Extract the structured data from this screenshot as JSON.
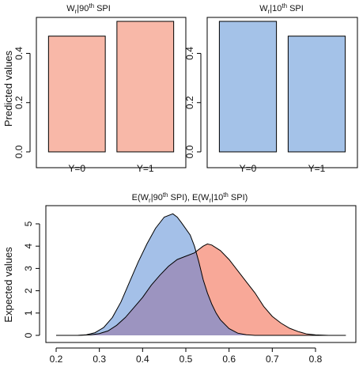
{
  "chart_data": [
    {
      "type": "bar",
      "title": {
        "main": "W",
        "sub": "r",
        "mid": "|90",
        "sup": "th",
        "tail": " SPI"
      },
      "ylabel": "Predicted values",
      "categories": [
        "Y=0",
        "Y=1"
      ],
      "values": [
        0.47,
        0.53
      ],
      "ylim": [
        0,
        0.53
      ],
      "yticks": [
        0.0,
        0.2,
        0.4
      ],
      "ytick_labels": [
        "0.0",
        "0.2",
        "0.4"
      ],
      "color": "#f8b8a8"
    },
    {
      "type": "bar",
      "title": {
        "main": "W",
        "sub": "r",
        "mid": "|10",
        "sup": "th",
        "tail": " SPI"
      },
      "categories": [
        "Y=0",
        "Y=1"
      ],
      "values": [
        0.53,
        0.47
      ],
      "ylim": [
        0,
        0.53
      ],
      "yticks": [
        0.0,
        0.2,
        0.4
      ],
      "ytick_labels": [
        "0.0",
        "0.2",
        "0.4"
      ],
      "color": "#a4c2e8"
    },
    {
      "type": "area",
      "title_parts": {
        "a": "E(W",
        "a_sub": "r",
        "a_mid": "|90",
        "a_sup": "th",
        "a_tail": " SPI), ",
        "b": "E(W",
        "b_sub": "r",
        "b_mid": "|10",
        "b_sup": "th",
        "b_tail": " SPI)"
      },
      "ylabel": "Expected values",
      "xlim": [
        0.2,
        0.87
      ],
      "ylim": [
        0,
        5.5
      ],
      "xticks": [
        0.2,
        0.3,
        0.4,
        0.5,
        0.6,
        0.7,
        0.8
      ],
      "xtick_labels": [
        "0.2",
        "0.3",
        "0.4",
        "0.5",
        "0.6",
        "0.7",
        "0.8"
      ],
      "yticks": [
        0,
        1,
        2,
        3,
        4,
        5
      ],
      "ytick_labels": [
        "0",
        "1",
        "2",
        "3",
        "4",
        "5"
      ],
      "overlap_color": "#9c94c0",
      "series": [
        {
          "color": "#f8a898",
          "x": [
            0.2,
            0.25,
            0.28,
            0.3,
            0.32,
            0.34,
            0.36,
            0.38,
            0.4,
            0.42,
            0.44,
            0.46,
            0.48,
            0.5,
            0.52,
            0.54,
            0.55,
            0.56,
            0.58,
            0.6,
            0.62,
            0.64,
            0.66,
            0.68,
            0.7,
            0.72,
            0.74,
            0.76,
            0.78,
            0.8,
            0.83,
            0.87
          ],
          "y": [
            0,
            0,
            0.02,
            0.08,
            0.2,
            0.45,
            0.8,
            1.25,
            1.7,
            2.25,
            2.7,
            3.1,
            3.4,
            3.55,
            3.7,
            4.0,
            4.1,
            4.05,
            3.8,
            3.4,
            2.9,
            2.4,
            1.9,
            1.3,
            0.85,
            0.55,
            0.32,
            0.17,
            0.06,
            0.02,
            0,
            0
          ]
        },
        {
          "color": "#a4c0e8",
          "x": [
            0.2,
            0.25,
            0.27,
            0.29,
            0.31,
            0.33,
            0.35,
            0.37,
            0.39,
            0.41,
            0.43,
            0.45,
            0.47,
            0.48,
            0.49,
            0.51,
            0.52,
            0.53,
            0.54,
            0.55,
            0.56,
            0.57,
            0.58,
            0.6,
            0.62,
            0.64,
            0.66,
            0.7,
            0.87
          ],
          "y": [
            0,
            0,
            0.03,
            0.12,
            0.35,
            0.8,
            1.5,
            2.4,
            3.3,
            4.1,
            4.8,
            5.3,
            5.45,
            5.3,
            5.05,
            4.5,
            4.0,
            3.3,
            2.5,
            1.9,
            1.4,
            1.0,
            0.7,
            0.3,
            0.1,
            0.03,
            0,
            0,
            0
          ]
        }
      ]
    }
  ]
}
